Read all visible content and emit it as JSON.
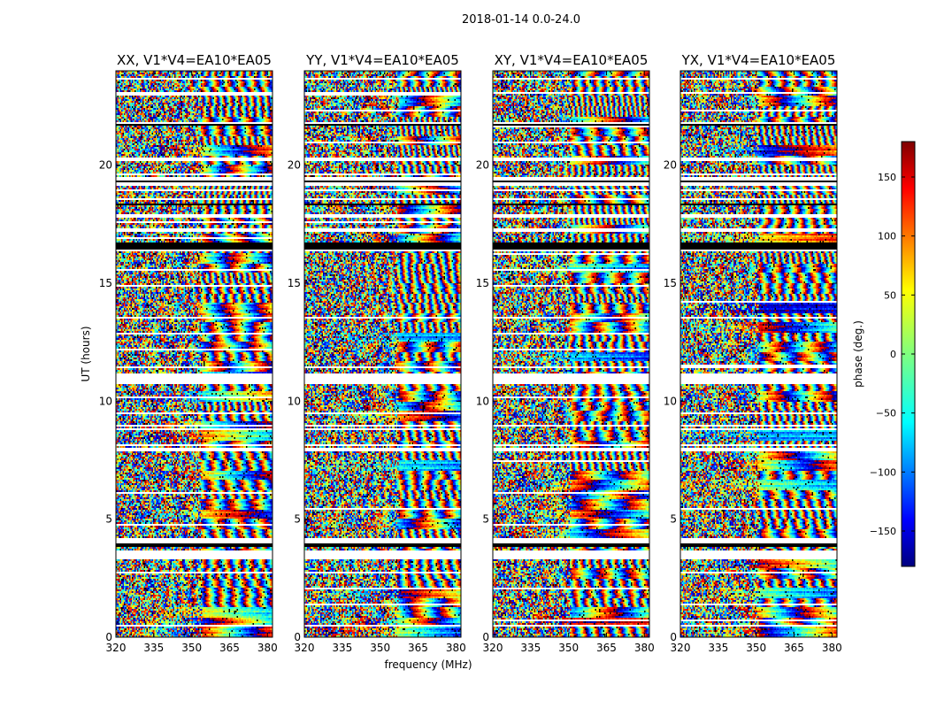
{
  "figure": {
    "suptitle": "2018-01-14 0.0-24.0"
  },
  "chart_data": {
    "type": "heatmap",
    "description_note": "Phase-vs-time-and-frequency waterfall plots, one per polarization product",
    "ylabel": "UT (hours)",
    "xlabel": "frequency (MHz)",
    "ylim": [
      0,
      24
    ],
    "xlim": [
      320,
      382
    ],
    "yticks": [
      0,
      5,
      10,
      15,
      20
    ],
    "xticks": [
      320,
      335,
      350,
      365,
      380
    ],
    "panels": [
      {
        "title": "XX, V1*V4=EA10*EA05",
        "pol": "XX"
      },
      {
        "title": "YY, V1*V4=EA10*EA05",
        "pol": "YY"
      },
      {
        "title": "XY, V1*V4=EA10*EA05",
        "pol": "XY"
      },
      {
        "title": "YX, V1*V4=EA10*EA05",
        "pol": "YX"
      }
    ],
    "blank_rows_hours": [
      [
        0.45,
        0.5
      ],
      [
        2.0,
        2.05
      ],
      [
        3.3,
        3.7
      ],
      [
        3.8,
        4.05
      ],
      [
        4.15,
        4.2
      ],
      [
        7.85,
        8.0
      ],
      [
        8.1,
        8.15
      ],
      [
        8.9,
        9.0
      ],
      [
        10.7,
        11.2
      ],
      [
        11.4,
        11.5
      ],
      [
        16.35,
        16.75
      ],
      [
        17.2,
        17.3
      ],
      [
        17.8,
        17.9
      ],
      [
        18.55,
        18.6
      ],
      [
        19.1,
        19.5
      ],
      [
        20.2,
        20.3
      ],
      [
        21.65,
        21.8
      ],
      [
        23.05,
        23.1
      ],
      [
        23.6,
        23.7
      ]
    ],
    "black_rows_hours": [
      [
        3.85,
        3.95
      ],
      [
        16.45,
        16.7
      ],
      [
        18.3,
        18.35
      ],
      [
        19.25,
        19.35
      ],
      [
        21.7,
        21.75
      ]
    ],
    "colorbar": {
      "label": "phase (deg.)",
      "range": [
        -180,
        180
      ],
      "ticks": [
        150,
        100,
        50,
        0,
        -50,
        -100,
        -150
      ],
      "tick_labels": [
        "150",
        "100",
        "50",
        "0",
        "−50",
        "−100",
        "−150"
      ],
      "colormap": "jet"
    }
  }
}
